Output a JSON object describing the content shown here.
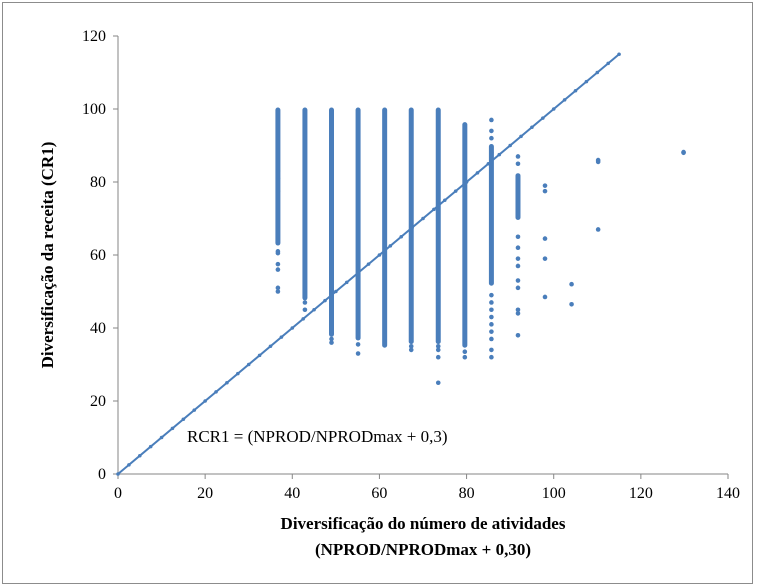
{
  "chart_data": {
    "type": "scatter",
    "xlabel_line1": "Diversificação do número de atividades",
    "xlabel_line2": "(NPROD/NPRODmax + 0,30)",
    "ylabel": "Diversificação da receita (CR1)",
    "annotation": "RCR1 = (NPROD/NPRODmax + 0,3)",
    "xlim": [
      0,
      140
    ],
    "ylim": [
      0,
      120
    ],
    "xticks": [
      0,
      20,
      40,
      60,
      80,
      100,
      120,
      140
    ],
    "yticks": [
      0,
      20,
      40,
      60,
      80,
      100,
      120
    ],
    "grid": false,
    "color": "#4a7ebb",
    "reference_line": {
      "x": [
        0,
        115
      ],
      "y": [
        0,
        115
      ]
    },
    "columns": [
      {
        "x": 36.7,
        "dense": [
          [
            63,
            100
          ]
        ],
        "points": [
          51,
          50,
          56,
          57.5,
          60.5,
          61,
          77.5,
          81,
          83
        ]
      },
      {
        "x": 42.9,
        "dense": [
          [
            48,
            100
          ]
        ],
        "points": [
          45,
          47
        ]
      },
      {
        "x": 49.0,
        "dense": [
          [
            38,
            100
          ]
        ],
        "points": [
          36,
          37,
          39,
          40
        ]
      },
      {
        "x": 55.1,
        "dense": [
          [
            37,
            100
          ]
        ],
        "points": [
          33,
          35.5
        ]
      },
      {
        "x": 61.2,
        "dense": [
          [
            35,
            100
          ]
        ],
        "points": []
      },
      {
        "x": 67.3,
        "dense": [
          [
            36,
            100
          ]
        ],
        "points": [
          34,
          35
        ]
      },
      {
        "x": 73.5,
        "dense": [
          [
            36,
            100
          ]
        ],
        "points": [
          25,
          32,
          34,
          35
        ]
      },
      {
        "x": 79.6,
        "dense": [
          [
            35,
            96
          ]
        ],
        "points": [
          32,
          33.5
        ]
      },
      {
        "x": 85.7,
        "dense": [
          [
            52,
            90
          ]
        ],
        "points": [
          97,
          94,
          92,
          88,
          49,
          47,
          45,
          43,
          41,
          39,
          37,
          34,
          32
        ]
      },
      {
        "x": 91.8,
        "dense": [
          [
            70,
            82
          ]
        ],
        "points": [
          87,
          85,
          65,
          62,
          59,
          57,
          53,
          51,
          45,
          44,
          38
        ]
      },
      {
        "x": 98.0,
        "dense": [],
        "points": [
          79,
          77.5,
          64.5,
          59,
          48.5
        ]
      },
      {
        "x": 104.1,
        "dense": [],
        "points": [
          52,
          46.5
        ]
      },
      {
        "x": 110.2,
        "dense": [],
        "points": [
          86,
          85.5,
          67
        ]
      },
      {
        "x": 129.8,
        "dense": [],
        "points": [
          88,
          88.2
        ]
      }
    ]
  }
}
